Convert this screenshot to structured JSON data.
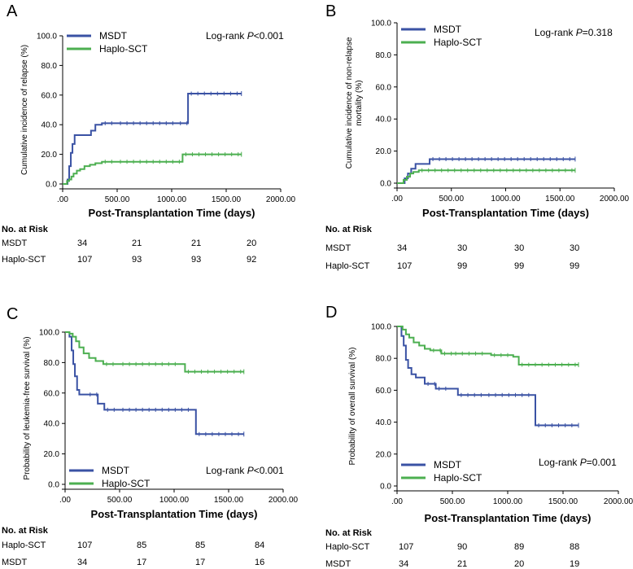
{
  "colors": {
    "msdt": "#3a52a4",
    "haplo": "#4caf50",
    "axis": "#000000"
  },
  "chart_data": [
    {
      "type": "line",
      "panel": "A",
      "xlabel": "Post-Transplantation Time (days)",
      "ylabel": "Cumulative incidence of relapse (%)",
      "xlim": [
        0,
        2000
      ],
      "ylim": [
        0,
        100
      ],
      "xticks": [
        ".00",
        "500.00",
        "1000.00",
        "1500.00",
        "2000.00"
      ],
      "yticks": [
        "0.0",
        "20.0",
        "40.0",
        "60.0",
        "80.0",
        "100.0"
      ],
      "annotation": {
        "prefix": "Log-rank ",
        "p": "P",
        "value": "<0.001"
      },
      "legend_position": "top-left",
      "series": [
        {
          "name": "MSDT",
          "key": "msdt",
          "x": [
            0,
            45,
            60,
            75,
            90,
            110,
            130,
            200,
            260,
            300,
            360,
            500,
            800,
            1050,
            1150,
            1640
          ],
          "y": [
            0,
            3,
            12,
            21,
            27,
            33,
            33,
            33,
            36,
            40,
            41,
            41,
            41,
            41,
            61,
            61
          ]
        },
        {
          "name": "Haplo-SCT",
          "key": "haplo",
          "x": [
            0,
            40,
            60,
            80,
            100,
            130,
            160,
            200,
            250,
            300,
            360,
            500,
            800,
            1100,
            1640
          ],
          "y": [
            0,
            2,
            3,
            5,
            7,
            9,
            10,
            12,
            13,
            14,
            15,
            15,
            15,
            20,
            20
          ]
        }
      ],
      "risk_table": {
        "title": "No. at Risk",
        "rows": [
          {
            "label": "MSDT",
            "values": [
              "34",
              "21",
              "21",
              "20"
            ]
          },
          {
            "label": "Haplo-SCT",
            "values": [
              "107",
              "93",
              "93",
              "92"
            ]
          }
        ]
      }
    },
    {
      "type": "line",
      "panel": "B",
      "xlabel": "Post-Transplantation Time (days)",
      "ylabel": "Cumulative incidence of non-relapse mortality (%)",
      "xlim": [
        0,
        2000
      ],
      "ylim": [
        0,
        100
      ],
      "xticks": [
        ".00",
        "500.00",
        "1000.00",
        "1500.00",
        "2000.00"
      ],
      "yticks": [
        "0.0",
        "20.0",
        "40.0",
        "60.0",
        "80.0",
        "100.0"
      ],
      "annotation": {
        "prefix": "Log-rank ",
        "p": "P",
        "value": "=0.318"
      },
      "legend_position": "top-left",
      "series": [
        {
          "name": "MSDT",
          "key": "msdt",
          "x": [
            0,
            70,
            100,
            130,
            170,
            250,
            300,
            1640
          ],
          "y": [
            0,
            3,
            6,
            9,
            12,
            12,
            15,
            15
          ]
        },
        {
          "name": "Haplo-SCT",
          "key": "haplo",
          "x": [
            0,
            60,
            90,
            120,
            150,
            200,
            1640
          ],
          "y": [
            0,
            2,
            4,
            6,
            7,
            8,
            8
          ]
        }
      ],
      "risk_table": {
        "title": "No. at Risk",
        "rows": [
          {
            "label": "MSDT",
            "values": [
              "34",
              "30",
              "30",
              "30"
            ]
          },
          {
            "label": "Haplo-SCT",
            "values": [
              "107",
              "99",
              "99",
              "99"
            ]
          }
        ]
      }
    },
    {
      "type": "line",
      "panel": "C",
      "xlabel": "Post-Transplantation Time (days)",
      "ylabel": "Probability of leukemia-free survival (%)",
      "xlim": [
        0,
        2000
      ],
      "ylim": [
        0,
        100
      ],
      "xticks": [
        ".00",
        "500.00",
        "1000.00",
        "1500.00",
        "2000.00"
      ],
      "yticks": [
        "0.0",
        "20.0",
        "40.0",
        "60.0",
        "80.0",
        "100.0"
      ],
      "annotation": {
        "prefix": "Log-rank ",
        "p": "P",
        "value": "<0.001"
      },
      "legend_position": "bottom-left",
      "series": [
        {
          "name": "MSDT",
          "key": "msdt",
          "x": [
            0,
            40,
            60,
            75,
            90,
            110,
            130,
            200,
            300,
            360,
            500,
            800,
            1150,
            1200,
            1640
          ],
          "y": [
            100,
            97,
            88,
            79,
            71,
            62,
            59,
            59,
            53,
            49,
            49,
            49,
            49,
            33,
            33
          ]
        },
        {
          "name": "Haplo-SCT",
          "key": "haplo",
          "x": [
            0,
            40,
            70,
            100,
            130,
            170,
            220,
            280,
            350,
            500,
            800,
            1050,
            1100,
            1640
          ],
          "y": [
            100,
            99,
            97,
            94,
            90,
            86,
            83,
            81,
            79,
            79,
            79,
            79,
            74,
            74
          ]
        }
      ],
      "risk_table": {
        "title": "No. at Risk",
        "rows": [
          {
            "label": "Haplo-SCT",
            "values": [
              "107",
              "85",
              "85",
              "84"
            ]
          },
          {
            "label": "MSDT",
            "values": [
              "34",
              "17",
              "17",
              "16"
            ]
          }
        ]
      }
    },
    {
      "type": "line",
      "panel": "D",
      "xlabel": "Post-Transplantation Time (days)",
      "ylabel": "Probability of overall survival (%)",
      "xlim": [
        0,
        2000
      ],
      "ylim": [
        0,
        100
      ],
      "xticks": [
        ".00",
        "500.00",
        "1000.00",
        "1500.00",
        "2000.00"
      ],
      "yticks": [
        "0.0",
        "20.0",
        "40.0",
        "60.0",
        "80.0",
        "100.0"
      ],
      "annotation": {
        "prefix": "Log-rank ",
        "p": "P",
        "value": "=0.001"
      },
      "legend_position": "bottom-left",
      "series": [
        {
          "name": "MSDT",
          "key": "msdt",
          "x": [
            0,
            40,
            60,
            80,
            100,
            130,
            170,
            250,
            350,
            500,
            550,
            800,
            1250,
            1640
          ],
          "y": [
            100,
            94,
            88,
            79,
            74,
            70,
            68,
            64,
            61,
            61,
            57,
            57,
            38,
            38
          ]
        },
        {
          "name": "Haplo-SCT",
          "key": "haplo",
          "x": [
            0,
            50,
            80,
            110,
            150,
            200,
            250,
            300,
            400,
            500,
            800,
            850,
            1050,
            1100,
            1640
          ],
          "y": [
            100,
            98,
            95,
            93,
            90,
            88,
            86,
            85,
            83,
            83,
            83,
            82,
            81,
            76,
            76
          ]
        }
      ],
      "risk_table": {
        "title": "No. at Risk",
        "rows": [
          {
            "label": "Haplo-SCT",
            "values": [
              "107",
              "90",
              "89",
              "88"
            ]
          },
          {
            "label": "MSDT",
            "values": [
              "34",
              "21",
              "20",
              "19"
            ]
          }
        ]
      }
    }
  ]
}
